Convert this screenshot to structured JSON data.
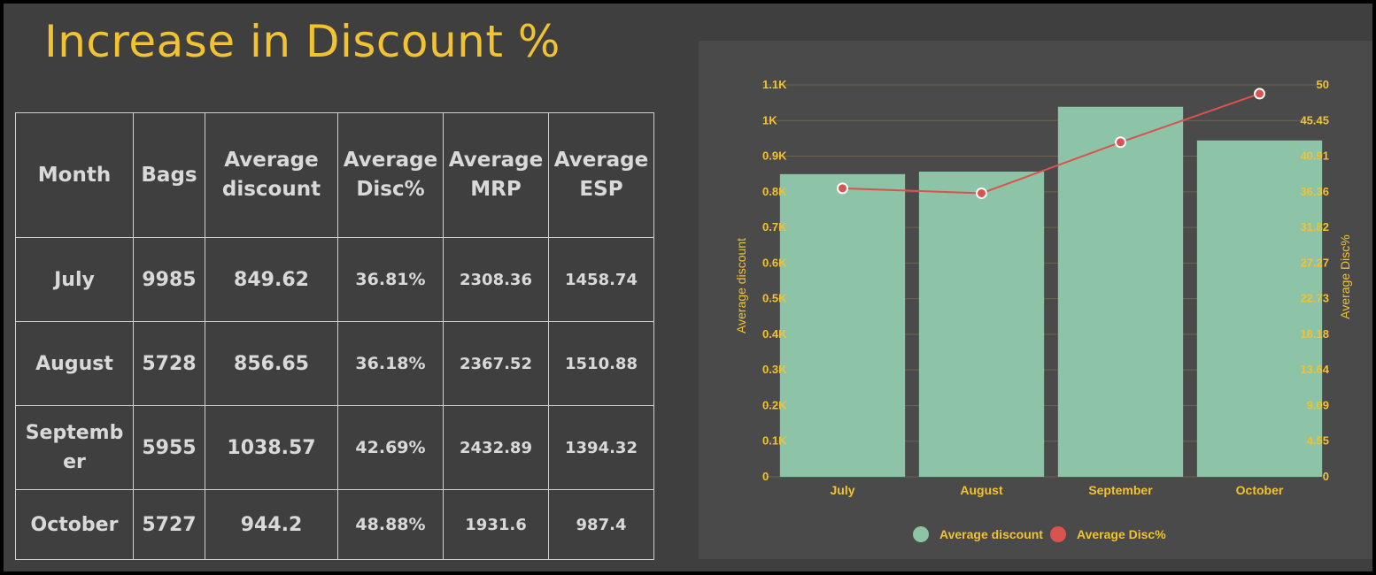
{
  "title": "Increase in Discount %",
  "table": {
    "headers": [
      "Month",
      "Bags",
      "Average discount",
      "Average Disc%",
      "Average MRP",
      "Average ESP"
    ],
    "rows": [
      [
        "July",
        "9985",
        "849.62",
        "36.81%",
        "2308.36",
        "1458.74"
      ],
      [
        "August",
        "5728",
        "856.65",
        "36.18%",
        "2367.52",
        "1510.88"
      ],
      [
        "Septemb er",
        "5955",
        "1038.57",
        "42.69%",
        "2432.89",
        "1394.32"
      ],
      [
        "October",
        "5727",
        "944.2",
        "48.88%",
        "1931.6",
        "987.4"
      ]
    ]
  },
  "chart_data": {
    "type": "bar",
    "categories": [
      "July",
      "August",
      "September",
      "October"
    ],
    "series": [
      {
        "name": "Average discount",
        "type": "bar",
        "axis": "left",
        "color": "#8dc3a7",
        "values": [
          849.62,
          856.65,
          1038.57,
          944.2
        ]
      },
      {
        "name": "Average Disc%",
        "type": "line",
        "axis": "right",
        "color": "#d9534f",
        "values": [
          36.81,
          36.18,
          42.69,
          48.88
        ]
      }
    ],
    "ylabel": "Average discount",
    "y2label": "Average Disc%",
    "ylim": [
      0,
      1100
    ],
    "y2lim": [
      0,
      50
    ],
    "yticks": [
      "0",
      "0.1K",
      "0.2K",
      "0.3K",
      "0.4K",
      "0.5K",
      "0.6K",
      "0.7K",
      "0.8K",
      "0.9K",
      "1K",
      "1.1K"
    ],
    "y2ticks": [
      "0",
      "4.55",
      "9.09",
      "13.64",
      "18.18",
      "22.73",
      "27.27",
      "31.82",
      "36.36",
      "40.91",
      "45.45",
      "50"
    ],
    "grid": true,
    "legend": "bottom"
  }
}
